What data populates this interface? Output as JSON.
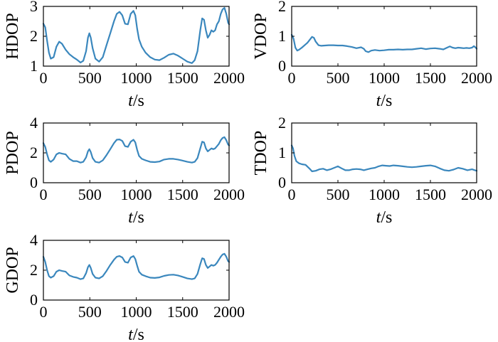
{
  "chart_data": [
    {
      "type": "line",
      "ylabel": "HDOP",
      "xlabel_var": "t",
      "xlabel_unit": "/s",
      "xlim": [
        0,
        2000
      ],
      "ylim": [
        1,
        3
      ],
      "xticks": [
        "0",
        "500",
        "1000",
        "1500",
        "2000"
      ],
      "yticks": [
        "1",
        "2",
        "3"
      ],
      "color": "#3a87bd",
      "x": [
        0,
        20,
        40,
        60,
        80,
        110,
        140,
        170,
        200,
        240,
        280,
        320,
        360,
        400,
        430,
        460,
        480,
        495,
        510,
        530,
        560,
        600,
        640,
        680,
        720,
        760,
        790,
        820,
        850,
        880,
        910,
        940,
        970,
        990,
        1010,
        1030,
        1060,
        1100,
        1150,
        1200,
        1250,
        1300,
        1350,
        1400,
        1450,
        1500,
        1550,
        1600,
        1630,
        1660,
        1690,
        1710,
        1730,
        1750,
        1770,
        1790,
        1810,
        1830,
        1850,
        1870,
        1890,
        1910,
        1930,
        1950,
        1970,
        1990,
        2000
      ],
      "y": [
        2.42,
        2.3,
        1.85,
        1.45,
        1.25,
        1.3,
        1.65,
        1.82,
        1.75,
        1.55,
        1.4,
        1.3,
        1.22,
        1.12,
        1.18,
        1.5,
        1.95,
        2.1,
        1.95,
        1.6,
        1.25,
        1.15,
        1.3,
        1.7,
        2.1,
        2.5,
        2.75,
        2.82,
        2.7,
        2.42,
        2.4,
        2.75,
        2.85,
        2.7,
        2.25,
        1.9,
        1.65,
        1.45,
        1.3,
        1.22,
        1.2,
        1.28,
        1.38,
        1.42,
        1.35,
        1.25,
        1.15,
        1.1,
        1.2,
        1.5,
        2.2,
        2.6,
        2.55,
        2.2,
        1.95,
        2.05,
        2.2,
        2.15,
        2.2,
        2.4,
        2.5,
        2.75,
        2.9,
        2.95,
        2.75,
        2.45,
        2.4
      ]
    },
    {
      "type": "line",
      "ylabel": "VDOP",
      "xlabel_var": "t",
      "xlabel_unit": "/s",
      "xlim": [
        0,
        2000
      ],
      "ylim": [
        0,
        2
      ],
      "xticks": [
        "0",
        "500",
        "1000",
        "1500",
        "2000"
      ],
      "yticks": [
        "0",
        "1",
        "2"
      ],
      "color": "#3a87bd",
      "x": [
        0,
        20,
        40,
        60,
        80,
        110,
        140,
        170,
        200,
        220,
        240,
        260,
        290,
        320,
        360,
        400,
        450,
        500,
        550,
        600,
        650,
        700,
        750,
        780,
        800,
        830,
        860,
        900,
        950,
        1000,
        1050,
        1100,
        1150,
        1200,
        1250,
        1300,
        1350,
        1400,
        1450,
        1500,
        1550,
        1600,
        1640,
        1680,
        1710,
        1740,
        1770,
        1800,
        1830,
        1860,
        1890,
        1920,
        1950,
        1970,
        1990,
        2000
      ],
      "y": [
        1.05,
        0.92,
        0.62,
        0.52,
        0.55,
        0.62,
        0.7,
        0.78,
        0.9,
        0.98,
        0.95,
        0.82,
        0.7,
        0.68,
        0.69,
        0.7,
        0.7,
        0.69,
        0.69,
        0.67,
        0.64,
        0.6,
        0.63,
        0.58,
        0.5,
        0.47,
        0.52,
        0.54,
        0.52,
        0.53,
        0.55,
        0.55,
        0.56,
        0.55,
        0.56,
        0.56,
        0.58,
        0.6,
        0.57,
        0.59,
        0.6,
        0.58,
        0.56,
        0.62,
        0.66,
        0.62,
        0.6,
        0.62,
        0.61,
        0.6,
        0.61,
        0.6,
        0.62,
        0.67,
        0.62,
        0.58
      ]
    },
    {
      "type": "line",
      "ylabel": "PDOP",
      "xlabel_var": "t",
      "xlabel_unit": "/s",
      "xlim": [
        0,
        2000
      ],
      "ylim": [
        0,
        4
      ],
      "xticks": [
        "0",
        "500",
        "1000",
        "1500",
        "2000"
      ],
      "yticks": [
        "0",
        "2",
        "4"
      ],
      "color": "#3a87bd",
      "x": [
        0,
        20,
        40,
        60,
        80,
        110,
        140,
        170,
        200,
        240,
        280,
        320,
        360,
        400,
        430,
        460,
        480,
        495,
        510,
        530,
        560,
        600,
        640,
        680,
        720,
        760,
        790,
        820,
        850,
        880,
        910,
        940,
        970,
        990,
        1010,
        1030,
        1060,
        1100,
        1150,
        1200,
        1250,
        1300,
        1350,
        1400,
        1450,
        1500,
        1550,
        1600,
        1630,
        1660,
        1690,
        1710,
        1730,
        1750,
        1770,
        1790,
        1810,
        1830,
        1850,
        1870,
        1890,
        1910,
        1930,
        1950,
        1970,
        1990,
        2000
      ],
      "y": [
        2.65,
        2.4,
        1.9,
        1.5,
        1.4,
        1.55,
        1.9,
        2.0,
        1.95,
        1.9,
        1.6,
        1.45,
        1.45,
        1.35,
        1.4,
        1.7,
        2.1,
        2.25,
        2.05,
        1.65,
        1.4,
        1.35,
        1.5,
        1.85,
        2.25,
        2.65,
        2.88,
        2.9,
        2.8,
        2.45,
        2.4,
        2.75,
        2.88,
        2.7,
        2.2,
        1.8,
        1.6,
        1.5,
        1.4,
        1.38,
        1.42,
        1.55,
        1.6,
        1.6,
        1.55,
        1.48,
        1.4,
        1.35,
        1.4,
        1.65,
        2.3,
        2.75,
        2.7,
        2.3,
        2.1,
        2.2,
        2.3,
        2.25,
        2.3,
        2.45,
        2.6,
        2.85,
        3.0,
        3.05,
        2.85,
        2.55,
        2.5
      ]
    },
    {
      "type": "line",
      "ylabel": "TDOP",
      "xlabel_var": "t",
      "xlabel_unit": "/s",
      "xlim": [
        0,
        2000
      ],
      "ylim": [
        0,
        2
      ],
      "xticks": [
        "0",
        "500",
        "1000",
        "1500",
        "2000"
      ],
      "yticks": [
        "0",
        "1",
        "2"
      ],
      "color": "#3a87bd",
      "x": [
        0,
        15,
        30,
        50,
        80,
        110,
        150,
        190,
        220,
        260,
        300,
        340,
        380,
        420,
        460,
        500,
        540,
        580,
        620,
        660,
        700,
        740,
        780,
        820,
        860,
        900,
        940,
        980,
        1020,
        1060,
        1100,
        1150,
        1200,
        1250,
        1300,
        1350,
        1400,
        1450,
        1500,
        1550,
        1600,
        1650,
        1700,
        1750,
        1800,
        1850,
        1900,
        1950,
        1980,
        2000
      ],
      "y": [
        1.25,
        1.15,
        0.9,
        0.72,
        0.65,
        0.62,
        0.6,
        0.48,
        0.38,
        0.4,
        0.45,
        0.47,
        0.42,
        0.45,
        0.5,
        0.55,
        0.48,
        0.42,
        0.42,
        0.45,
        0.46,
        0.45,
        0.42,
        0.45,
        0.48,
        0.5,
        0.55,
        0.58,
        0.57,
        0.56,
        0.58,
        0.57,
        0.55,
        0.53,
        0.52,
        0.53,
        0.55,
        0.57,
        0.58,
        0.55,
        0.48,
        0.42,
        0.4,
        0.44,
        0.5,
        0.47,
        0.42,
        0.45,
        0.42,
        0.4
      ]
    },
    {
      "type": "line",
      "ylabel": "GDOP",
      "xlabel_var": "t",
      "xlabel_unit": "/s",
      "xlim": [
        0,
        2000
      ],
      "ylim": [
        0,
        4
      ],
      "xticks": [
        "0",
        "500",
        "1000",
        "1500",
        "2000"
      ],
      "yticks": [
        "0",
        "2",
        "4"
      ],
      "color": "#3a87bd",
      "x": [
        0,
        20,
        40,
        60,
        80,
        110,
        140,
        170,
        200,
        240,
        280,
        320,
        360,
        400,
        430,
        460,
        480,
        495,
        510,
        530,
        560,
        600,
        640,
        680,
        720,
        760,
        790,
        820,
        850,
        880,
        910,
        940,
        970,
        990,
        1010,
        1030,
        1060,
        1100,
        1150,
        1200,
        1250,
        1300,
        1350,
        1400,
        1450,
        1500,
        1550,
        1600,
        1630,
        1660,
        1690,
        1710,
        1730,
        1750,
        1770,
        1790,
        1810,
        1830,
        1850,
        1870,
        1890,
        1910,
        1930,
        1950,
        1970,
        1990,
        2000
      ],
      "y": [
        2.9,
        2.55,
        2.0,
        1.6,
        1.5,
        1.6,
        1.9,
        2.0,
        1.95,
        1.9,
        1.65,
        1.55,
        1.5,
        1.4,
        1.45,
        1.8,
        2.2,
        2.35,
        2.15,
        1.75,
        1.5,
        1.45,
        1.6,
        1.95,
        2.35,
        2.7,
        2.9,
        2.95,
        2.85,
        2.55,
        2.5,
        2.85,
        2.95,
        2.75,
        2.3,
        1.9,
        1.7,
        1.6,
        1.5,
        1.48,
        1.52,
        1.62,
        1.68,
        1.7,
        1.65,
        1.55,
        1.45,
        1.4,
        1.45,
        1.75,
        2.4,
        2.8,
        2.75,
        2.35,
        2.15,
        2.25,
        2.35,
        2.3,
        2.35,
        2.5,
        2.7,
        2.9,
        3.05,
        3.1,
        2.9,
        2.6,
        2.55
      ]
    }
  ]
}
